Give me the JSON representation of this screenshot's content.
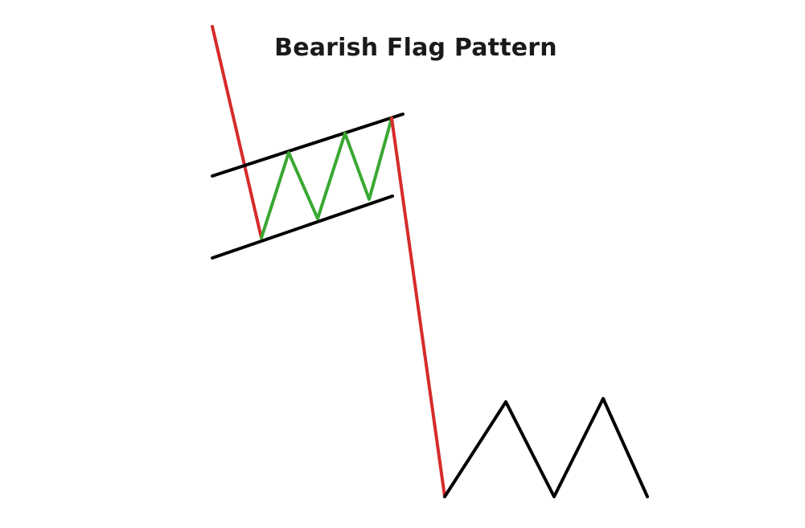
{
  "title": "Bearish Flag Pattern",
  "colors": {
    "background": "#ffffff",
    "pole": "#d62b2b",
    "flag_price": "#3aa832",
    "channel": "#000000",
    "continuation": "#000000"
  },
  "elements": [
    "flagpole",
    "flag-upper-boundary",
    "flag-lower-boundary",
    "flag-price-zigzag",
    "breakdown-line",
    "continuation-zigzag"
  ]
}
